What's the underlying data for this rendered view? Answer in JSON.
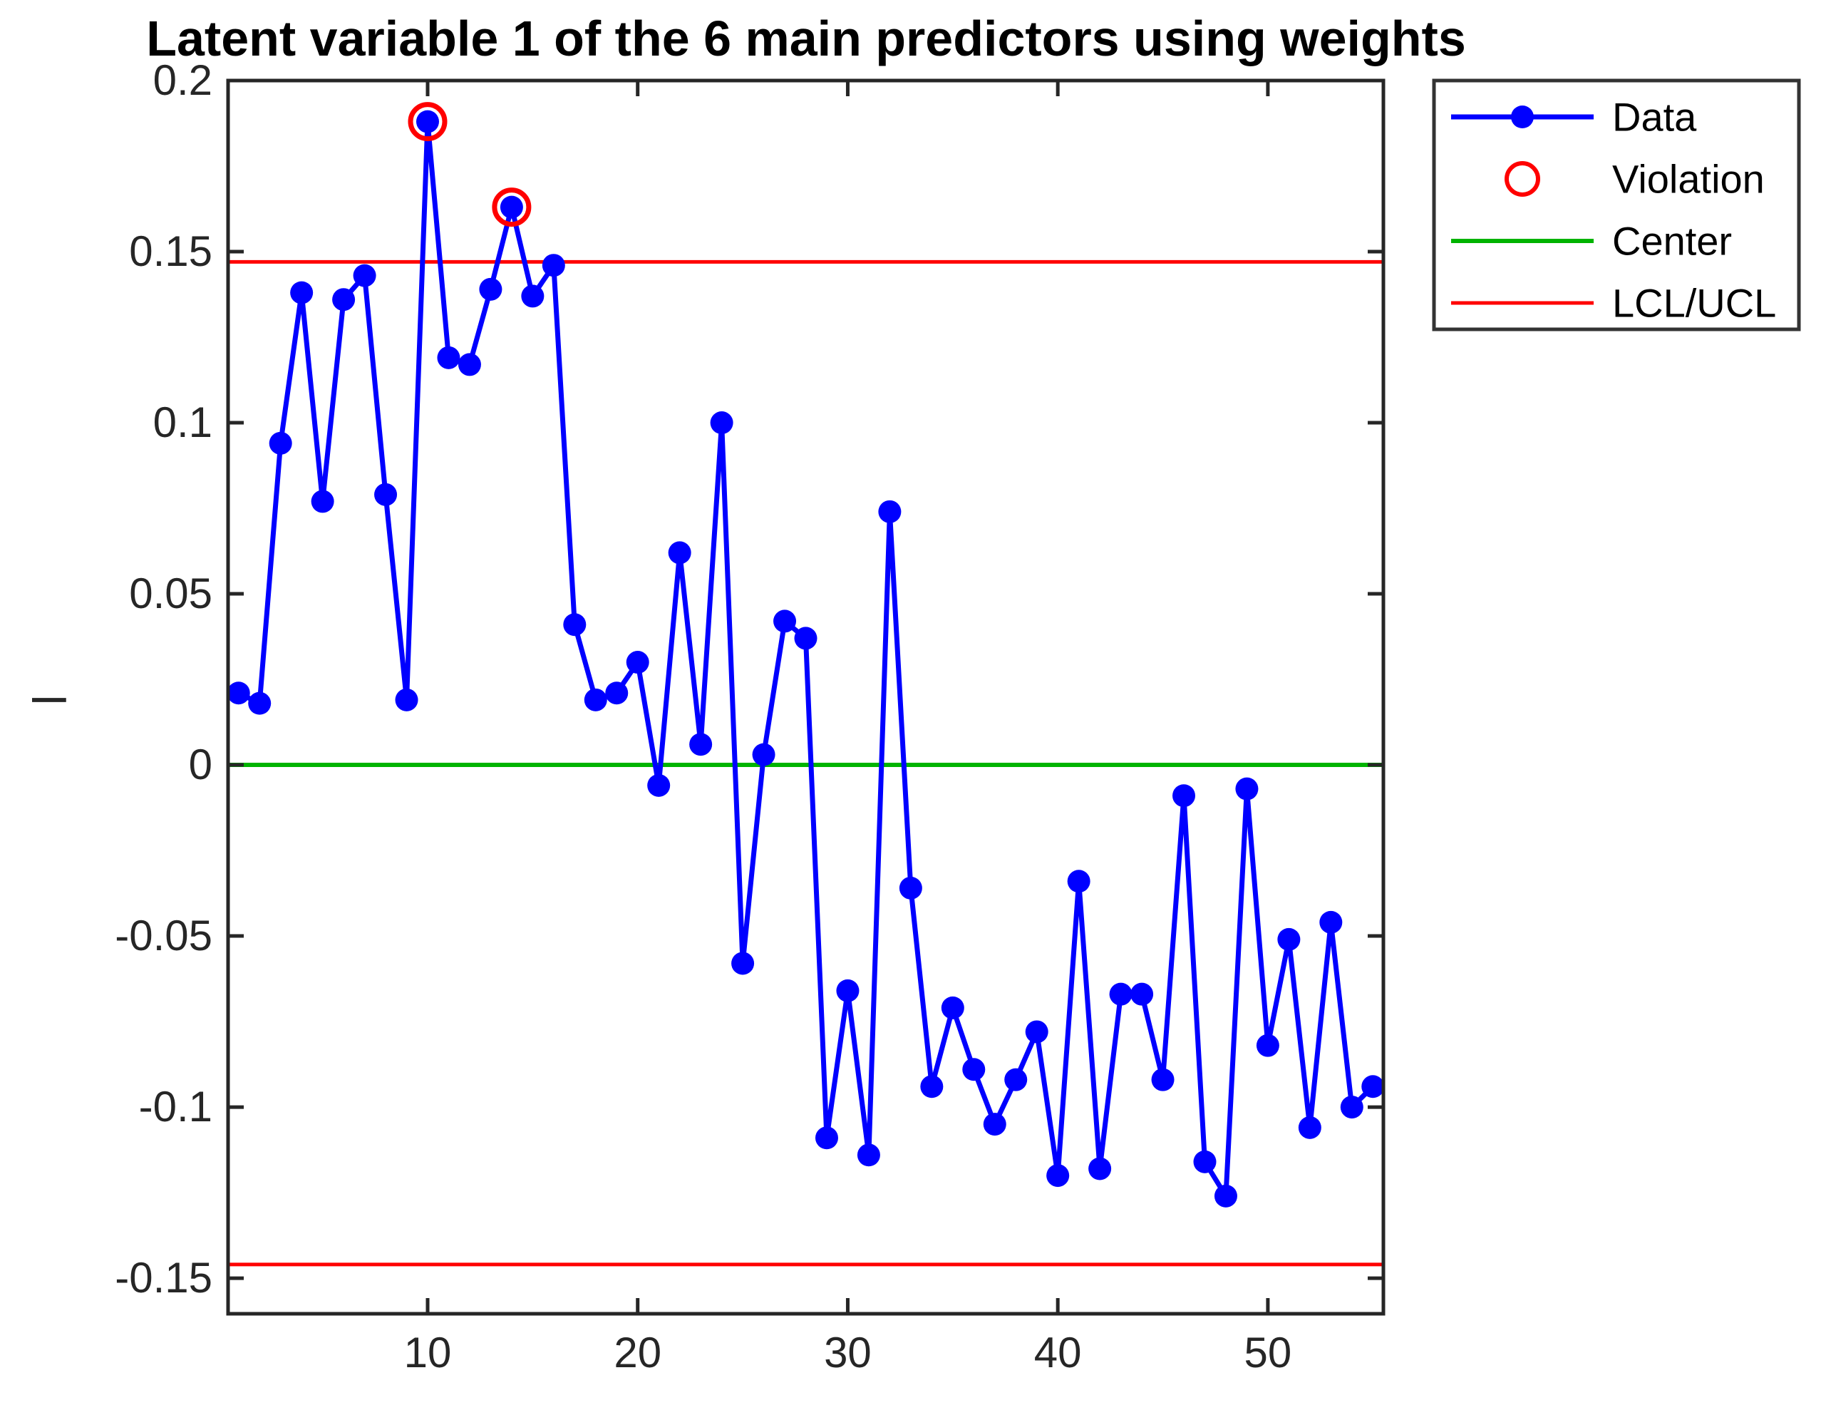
{
  "title": "Latent variable 1 of the 6 main predictors using weights",
  "ylabel": "l",
  "xlabel": "",
  "colors": {
    "data_line": "#0000ff",
    "violation": "#ff0000",
    "center_line": "#00b300",
    "limit_line": "#ff0000",
    "axis": "#262626",
    "background": "#ffffff"
  },
  "legend": {
    "entries": [
      {
        "label": "Data",
        "type": "data"
      },
      {
        "label": "Violation",
        "type": "violation"
      },
      {
        "label": "Center",
        "type": "center"
      },
      {
        "label": "LCL/UCL",
        "type": "lcl_ucl"
      }
    ]
  },
  "chart_data": {
    "type": "line",
    "title": "Latent variable 1 of the 6 main predictors using weights",
    "xlabel": "",
    "ylabel": "l",
    "x": [
      1,
      2,
      3,
      4,
      5,
      6,
      7,
      8,
      9,
      10,
      11,
      12,
      13,
      14,
      15,
      16,
      17,
      18,
      19,
      20,
      21,
      22,
      23,
      24,
      25,
      26,
      27,
      28,
      29,
      30,
      31,
      32,
      33,
      34,
      35,
      36,
      37,
      38,
      39,
      40,
      41,
      42,
      43,
      44,
      45,
      46,
      47,
      48,
      49,
      50,
      51,
      52,
      53,
      54,
      55
    ],
    "values": [
      0.021,
      0.018,
      0.094,
      0.138,
      0.077,
      0.136,
      0.143,
      0.079,
      0.019,
      0.188,
      0.119,
      0.117,
      0.139,
      0.163,
      0.137,
      0.146,
      0.041,
      0.019,
      0.021,
      0.03,
      -0.006,
      0.062,
      0.006,
      0.1,
      -0.058,
      0.003,
      0.042,
      0.037,
      -0.109,
      -0.066,
      -0.114,
      0.074,
      -0.036,
      -0.094,
      -0.071,
      -0.089,
      -0.105,
      -0.092,
      -0.078,
      -0.12,
      -0.034,
      -0.118,
      -0.067,
      -0.067,
      -0.092,
      -0.009,
      -0.116,
      -0.126,
      -0.007,
      -0.082,
      -0.051,
      -0.106,
      -0.046,
      -0.1,
      -0.094
    ],
    "violation_indices": [
      10,
      14
    ],
    "center": 0,
    "ucl": 0.147,
    "lcl": -0.146,
    "xlim": [
      0.5,
      55.5
    ],
    "ylim": [
      -0.1604,
      0.2
    ],
    "xticks": [
      10,
      20,
      30,
      40,
      50
    ],
    "xtick_labels": [
      "10",
      "20",
      "30",
      "40",
      "50"
    ],
    "yticks": [
      0.2,
      0.15,
      0.1,
      0.05,
      0,
      -0.05,
      -0.1,
      -0.15
    ],
    "ytick_labels": [
      "0.2",
      "0.15",
      "0.1",
      "0.05",
      "0",
      "-0.05",
      "-0.1",
      "-0.15"
    ],
    "grid": false,
    "legend_entries": [
      "Data",
      "Violation",
      "Center",
      "LCL/UCL"
    ],
    "legend_position": "outside-top-right"
  }
}
